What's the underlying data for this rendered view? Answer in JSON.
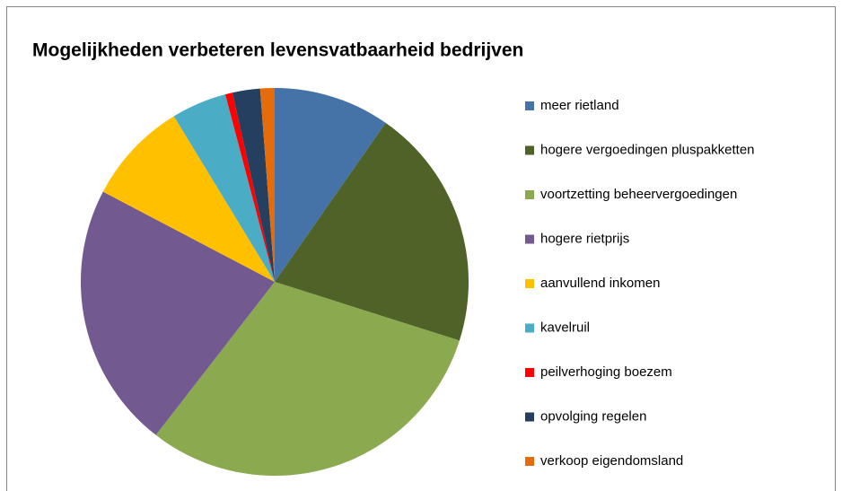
{
  "chart_data": {
    "type": "pie",
    "title": "Mogelijkheden verbeteren levensvatbaarheid bedrijven",
    "categories": [
      "meer rietland",
      "hogere vergoedingen pluspakketten",
      "voortzetting beheervergoedingen",
      "hogere rietprijs",
      "aanvullend inkomen",
      "kavelruil",
      "peilverhoging boezem",
      "opvolging regelen",
      "verkoop eigendomsland"
    ],
    "values": [
      9.7,
      20.2,
      30.6,
      22.2,
      8.6,
      4.6,
      0.6,
      2.3,
      1.2
    ],
    "colors": [
      "#4572A7",
      "#4F6228",
      "#8BA94F",
      "#725990",
      "#FFC000",
      "#4BACC6",
      "#FF0000",
      "#243F60",
      "#E46C0A"
    ],
    "legend": "right"
  }
}
